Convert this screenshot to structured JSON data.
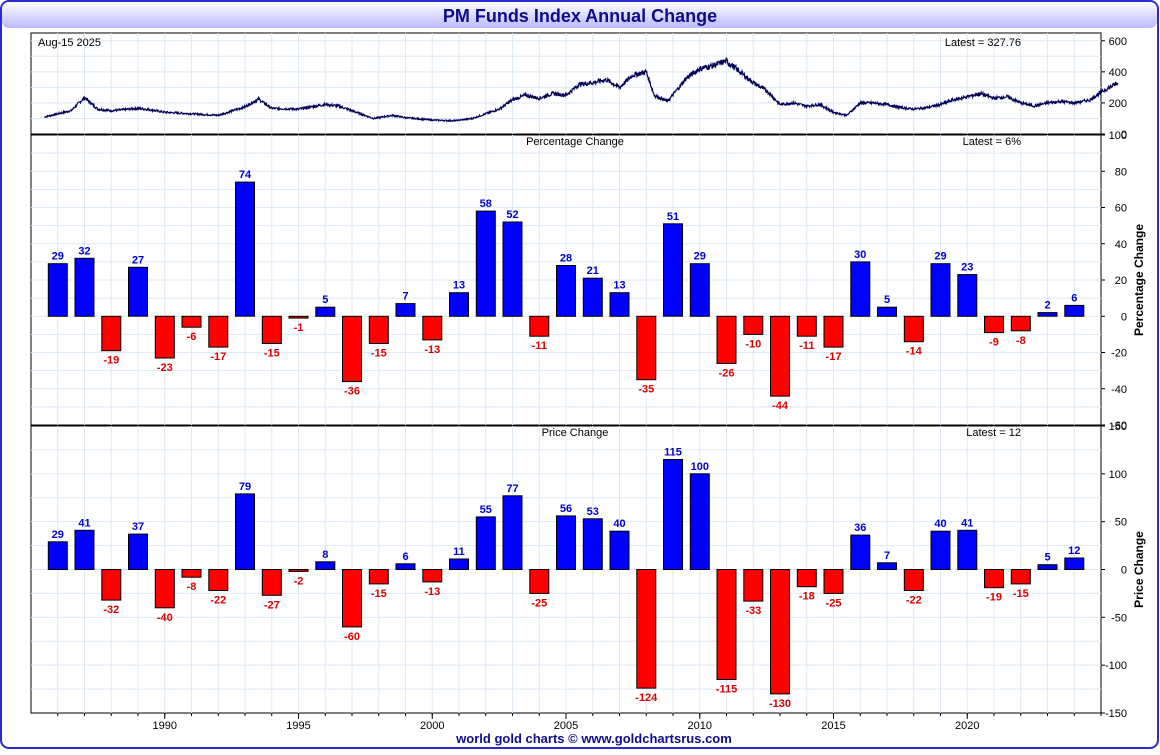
{
  "title": "PM Funds Index Annual Change",
  "footer": "world gold charts © www.goldchartsrus.com",
  "colors": {
    "frame_border": "#2b2bd0",
    "title_text": "#0d0d8a",
    "title_bar_top": "#ffffff",
    "title_bar_bottom": "#b9b9ff",
    "price_line": "#000055",
    "positive_bar": "#0000ff",
    "negative_bar": "#ff0000",
    "positive_label": "#0000cc",
    "negative_label": "#dd0000",
    "grid": "#dde9f4",
    "axis_text": "#000000"
  },
  "chart_data": [
    {
      "name": "price_panel",
      "type": "line",
      "date_label": "Aug-15  2025",
      "latest_label": "Latest = 327.76",
      "ylim": [
        0,
        650
      ],
      "yticks": [
        0,
        200,
        400,
        600
      ],
      "x": [
        1985.5,
        1986.5,
        1987.0,
        1987.5,
        1988.0,
        1989.0,
        1989.5,
        1990.0,
        1991.0,
        1992.0,
        1993.0,
        1993.5,
        1994.0,
        1995.0,
        1996.0,
        1996.5,
        1997.0,
        1997.8,
        1998.5,
        1999.0,
        2000.0,
        2000.8,
        2001.5,
        2002.0,
        2002.5,
        2003.0,
        2003.5,
        2004.0,
        2004.5,
        2005.0,
        2005.5,
        2006.0,
        2006.5,
        2007.0,
        2007.5,
        2008.0,
        2008.3,
        2008.8,
        2009.5,
        2010.0,
        2010.5,
        2011.0,
        2011.5,
        2012.0,
        2012.5,
        2013.0,
        2013.5,
        2014.0,
        2014.5,
        2015.0,
        2015.5,
        2016.0,
        2016.5,
        2017.0,
        2017.5,
        2018.0,
        2018.5,
        2019.0,
        2019.5,
        2020.0,
        2020.5,
        2021.0,
        2021.5,
        2022.0,
        2022.5,
        2023.0,
        2023.5,
        2024.0,
        2024.6,
        2025.0,
        2025.62
      ],
      "y": [
        110,
        150,
        235,
        160,
        150,
        165,
        155,
        140,
        130,
        120,
        175,
        225,
        165,
        160,
        190,
        180,
        150,
        100,
        120,
        105,
        90,
        85,
        100,
        130,
        160,
        220,
        250,
        230,
        260,
        250,
        320,
        330,
        350,
        300,
        380,
        400,
        250,
        210,
        360,
        420,
        440,
        470,
        400,
        330,
        280,
        190,
        200,
        180,
        190,
        140,
        120,
        200,
        200,
        190,
        170,
        160,
        170,
        190,
        220,
        240,
        260,
        230,
        240,
        200,
        180,
        200,
        210,
        200,
        220,
        270,
        328
      ]
    },
    {
      "name": "percentage_panel",
      "type": "bar",
      "title": "Percentage Change",
      "latest_label": "Latest = 6%",
      "ylabel": "Percentage Change",
      "ylim": [
        -60,
        100
      ],
      "yticks": [
        -60,
        -40,
        -20,
        0,
        20,
        40,
        60,
        80,
        100
      ],
      "years": [
        1986,
        1987,
        1988,
        1989,
        1990,
        1991,
        1992,
        1993,
        1994,
        1995,
        1996,
        1997,
        1998,
        1999,
        2000,
        2001,
        2002,
        2003,
        2004,
        2005,
        2006,
        2007,
        2008,
        2009,
        2010,
        2011,
        2012,
        2013,
        2014,
        2015,
        2016,
        2017,
        2018,
        2019,
        2020,
        2021,
        2022,
        2023,
        2024
      ],
      "values": [
        29,
        32,
        -19,
        27,
        -23,
        -6,
        -17,
        74,
        -15,
        -1,
        5,
        -36,
        -15,
        7,
        -13,
        13,
        58,
        52,
        -11,
        28,
        21,
        13,
        -35,
        51,
        29,
        -26,
        -10,
        -44,
        -11,
        -17,
        30,
        5,
        -14,
        29,
        23,
        -9,
        -8,
        2,
        6
      ]
    },
    {
      "name": "price_change_panel",
      "type": "bar",
      "title": "Price Change",
      "latest_label": "Latest = 12",
      "ylabel": "Price Change",
      "ylim": [
        -150,
        150
      ],
      "yticks": [
        -150,
        -100,
        -50,
        0,
        50,
        100,
        150
      ],
      "years": [
        1986,
        1987,
        1988,
        1989,
        1990,
        1991,
        1992,
        1993,
        1994,
        1995,
        1996,
        1997,
        1998,
        1999,
        2000,
        2001,
        2002,
        2003,
        2004,
        2005,
        2006,
        2007,
        2008,
        2009,
        2010,
        2011,
        2012,
        2013,
        2014,
        2015,
        2016,
        2017,
        2018,
        2019,
        2020,
        2021,
        2022,
        2023,
        2024
      ],
      "values": [
        29,
        41,
        -32,
        37,
        -40,
        -8,
        -22,
        79,
        -27,
        -2,
        8,
        -60,
        -15,
        6,
        -13,
        11,
        55,
        77,
        -25,
        56,
        53,
        40,
        -124,
        115,
        100,
        -115,
        -33,
        -130,
        -18,
        -25,
        36,
        7,
        -22,
        40,
        41,
        -19,
        -15,
        5,
        12
      ],
      "xticks": [
        1990,
        1995,
        2000,
        2005,
        2010,
        2015,
        2020
      ]
    }
  ]
}
